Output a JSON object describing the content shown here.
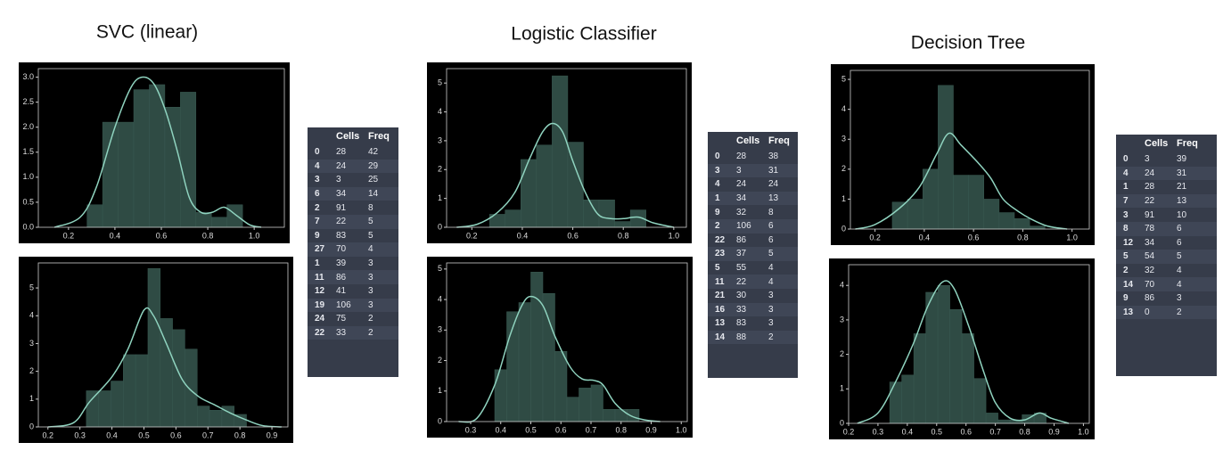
{
  "titles": [
    "SVC (linear)",
    "Logistic Classifier",
    "Decision Tree"
  ],
  "chart_data": [
    {
      "type": "histogram",
      "bins": [
        0.28,
        0.347,
        0.414,
        0.481,
        0.548,
        0.615,
        0.682,
        0.749,
        0.816,
        0.883,
        0.95
      ],
      "counts": [
        0.45,
        2.1,
        2.1,
        2.75,
        2.85,
        2.4,
        2.7,
        0.3,
        0.2,
        0.45
      ],
      "kde": {
        "x": [
          0.14,
          0.25,
          0.32,
          0.4,
          0.47,
          0.52,
          0.57,
          0.62,
          0.67,
          0.72,
          0.77,
          0.82,
          0.87,
          0.92,
          0.98,
          1.03
        ],
        "values": [
          0,
          0.2,
          0.8,
          2.0,
          2.8,
          3.0,
          2.85,
          2.3,
          1.5,
          0.6,
          0.3,
          0.3,
          0.4,
          0.25,
          0.05,
          0
        ]
      },
      "xlim": [
        0.07,
        1.13
      ],
      "ylim": [
        0,
        3.17
      ],
      "xticks": [
        0.2,
        0.4,
        0.6,
        0.8,
        {
          "value": 1,
          "label": "1.0"
        }
      ],
      "yticks": [
        {
          "value": 0,
          "label": "0.0"
        },
        0.5,
        {
          "value": 1,
          "label": "1.0"
        },
        1.5,
        {
          "value": 2,
          "label": "2.0"
        },
        2.5,
        {
          "value": 3,
          "label": "3.0"
        }
      ],
      "color": "#2f4b44",
      "line_color": "#8fd3bf"
    },
    {
      "type": "histogram",
      "bins": [
        0.32,
        0.3585,
        0.397,
        0.4355,
        0.474,
        0.5125,
        0.551,
        0.5895,
        0.628,
        0.6665,
        0.705,
        0.7435,
        0.782,
        0.8205
      ],
      "counts": [
        1.3,
        1.3,
        1.65,
        2.6,
        2.6,
        5.7,
        3.9,
        3.5,
        2.8,
        0.75,
        0.6,
        0.75,
        0.45
      ],
      "kde": {
        "x": [
          0.2,
          0.28,
          0.33,
          0.4,
          0.45,
          0.5,
          0.53,
          0.57,
          0.62,
          0.67,
          0.72,
          0.77,
          0.82,
          0.87,
          0.93
        ],
        "values": [
          0,
          0.15,
          0.9,
          1.8,
          2.8,
          4.2,
          4.0,
          3.0,
          1.7,
          1.1,
          0.8,
          0.5,
          0.25,
          0.05,
          0
        ]
      },
      "xlim": [
        0.17,
        0.95
      ],
      "ylim": [
        0,
        5.9
      ],
      "xticks": [
        0.2,
        0.3,
        0.4,
        0.5,
        0.6,
        0.7,
        0.8,
        0.9
      ],
      "yticks": [
        0,
        1,
        2,
        3,
        4,
        5
      ],
      "color": "#2f4b44",
      "line_color": "#8fd3bf"
    },
    {
      "type": "histogram",
      "bins": [
        0.27,
        0.332,
        0.394,
        0.456,
        0.518,
        0.58,
        0.642,
        0.704,
        0.766,
        0.828,
        0.89
      ],
      "counts": [
        0.45,
        0.6,
        2.35,
        2.85,
        5.25,
        2.95,
        0.95,
        0.95,
        0.2,
        0.6
      ],
      "kde": {
        "x": [
          0.14,
          0.22,
          0.3,
          0.37,
          0.43,
          0.48,
          0.52,
          0.56,
          0.6,
          0.65,
          0.7,
          0.75,
          0.8,
          0.86,
          0.92,
          1.0
        ],
        "values": [
          0,
          0.1,
          0.5,
          1.2,
          2.4,
          3.3,
          3.6,
          3.3,
          2.3,
          1.2,
          0.45,
          0.3,
          0.3,
          0.35,
          0.15,
          0
        ]
      },
      "xlim": [
        0.1,
        1.05
      ],
      "ylim": [
        0,
        5.5
      ],
      "xticks": [
        0.2,
        0.4,
        0.6,
        0.8,
        {
          "value": 1,
          "label": "1.0"
        }
      ],
      "yticks": [
        0,
        1,
        2,
        3,
        4,
        5
      ],
      "color": "#2f4b44",
      "line_color": "#8fd3bf"
    },
    {
      "type": "histogram",
      "bins": [
        0.38,
        0.42,
        0.46,
        0.5,
        0.54,
        0.58,
        0.62,
        0.66,
        0.7,
        0.74,
        0.78,
        0.82,
        0.86
      ],
      "counts": [
        1.7,
        3.6,
        3.9,
        4.9,
        4.2,
        2.3,
        0.8,
        1.1,
        1.2,
        0.4,
        0.4,
        0.4
      ],
      "kde": {
        "x": [
          0.26,
          0.32,
          0.38,
          0.43,
          0.47,
          0.5,
          0.54,
          0.58,
          0.63,
          0.67,
          0.71,
          0.74,
          0.78,
          0.83,
          0.88,
          0.93
        ],
        "values": [
          0,
          0.1,
          1.2,
          2.8,
          3.8,
          4.1,
          3.8,
          2.8,
          1.8,
          1.4,
          1.35,
          1.2,
          0.6,
          0.2,
          0.05,
          0
        ]
      },
      "xlim": [
        0.22,
        1.02
      ],
      "ylim": [
        0,
        5.2
      ],
      "xticks": [
        0.3,
        0.4,
        0.5,
        0.6,
        0.7,
        0.8,
        0.9,
        {
          "value": 1,
          "label": "1.0"
        }
      ],
      "yticks": [
        0,
        1,
        2,
        3,
        4,
        5
      ],
      "color": "#2f4b44",
      "line_color": "#8fd3bf"
    },
    {
      "type": "histogram",
      "bins": [
        0.27,
        0.332,
        0.394,
        0.456,
        0.518,
        0.58,
        0.642,
        0.704,
        0.766,
        0.828,
        0.89
      ],
      "counts": [
        0.9,
        1.0,
        2.0,
        4.8,
        1.8,
        1.8,
        1.0,
        0.55,
        0.35,
        0.1
      ],
      "kde": {
        "x": [
          0.12,
          0.2,
          0.3,
          0.38,
          0.45,
          0.5,
          0.55,
          0.62,
          0.67,
          0.72,
          0.78,
          0.83,
          0.9,
          0.98
        ],
        "values": [
          0,
          0.15,
          0.7,
          1.4,
          2.5,
          3.2,
          2.8,
          2.2,
          1.7,
          1.0,
          0.6,
          0.35,
          0.1,
          0
        ]
      },
      "xlim": [
        0.1,
        1.07
      ],
      "ylim": [
        0,
        5.3
      ],
      "xticks": [
        0.2,
        0.4,
        0.6,
        0.8,
        {
          "value": 1,
          "label": "1.0"
        }
      ],
      "yticks": [
        0,
        1,
        2,
        3,
        4,
        5
      ],
      "color": "#2f4b44",
      "line_color": "#8fd3bf"
    },
    {
      "type": "histogram",
      "bins": [
        0.34,
        0.381,
        0.422,
        0.463,
        0.504,
        0.545,
        0.586,
        0.627,
        0.668,
        0.709,
        0.75,
        0.791,
        0.832,
        0.873
      ],
      "counts": [
        1.2,
        1.4,
        2.6,
        3.8,
        4.0,
        3.3,
        2.6,
        1.3,
        0.3,
        0.1,
        0.1,
        0.25,
        0.3
      ],
      "kde": {
        "x": [
          0.23,
          0.3,
          0.36,
          0.42,
          0.47,
          0.52,
          0.56,
          0.61,
          0.66,
          0.7,
          0.75,
          0.8,
          0.85,
          0.89,
          0.95
        ],
        "values": [
          0,
          0.3,
          1.2,
          2.3,
          3.4,
          4.1,
          3.9,
          2.8,
          1.5,
          0.6,
          0.15,
          0.1,
          0.3,
          0.15,
          0
        ]
      },
      "xlim": [
        0.2,
        1.02
      ],
      "ylim": [
        0,
        4.6
      ],
      "xticks": [
        0.2,
        0.3,
        0.4,
        0.5,
        0.6,
        0.7,
        0.8,
        0.9,
        {
          "value": 1,
          "label": "1.0"
        }
      ],
      "yticks": [
        0,
        1,
        2,
        3,
        4
      ],
      "color": "#2f4b44",
      "line_color": "#8fd3bf"
    }
  ],
  "tables": [
    {
      "columns": [
        "Cells",
        "Freq"
      ],
      "rows": [
        [
          0,
          28,
          42
        ],
        [
          4,
          24,
          29
        ],
        [
          3,
          3,
          25
        ],
        [
          6,
          34,
          14
        ],
        [
          2,
          91,
          8
        ],
        [
          7,
          22,
          5
        ],
        [
          9,
          83,
          5
        ],
        [
          27,
          70,
          4
        ],
        [
          1,
          39,
          3
        ],
        [
          11,
          86,
          3
        ],
        [
          12,
          41,
          3
        ],
        [
          19,
          106,
          3
        ],
        [
          24,
          75,
          2
        ],
        [
          22,
          33,
          2
        ]
      ]
    },
    {
      "columns": [
        "Cells",
        "Freq"
      ],
      "rows": [
        [
          0,
          28,
          38
        ],
        [
          3,
          3,
          31
        ],
        [
          4,
          24,
          24
        ],
        [
          1,
          34,
          13
        ],
        [
          9,
          32,
          8
        ],
        [
          2,
          106,
          6
        ],
        [
          22,
          86,
          6
        ],
        [
          23,
          37,
          5
        ],
        [
          5,
          55,
          4
        ],
        [
          11,
          22,
          4
        ],
        [
          21,
          30,
          3
        ],
        [
          16,
          33,
          3
        ],
        [
          13,
          83,
          3
        ],
        [
          14,
          88,
          2
        ]
      ]
    },
    {
      "columns": [
        "Cells",
        "Freq"
      ],
      "rows": [
        [
          0,
          3,
          39
        ],
        [
          4,
          24,
          31
        ],
        [
          1,
          28,
          21
        ],
        [
          7,
          22,
          13
        ],
        [
          3,
          91,
          10
        ],
        [
          8,
          78,
          6
        ],
        [
          12,
          34,
          6
        ],
        [
          5,
          54,
          5
        ],
        [
          2,
          32,
          4
        ],
        [
          14,
          70,
          4
        ],
        [
          9,
          86,
          3
        ],
        [
          13,
          0,
          2
        ]
      ]
    }
  ]
}
